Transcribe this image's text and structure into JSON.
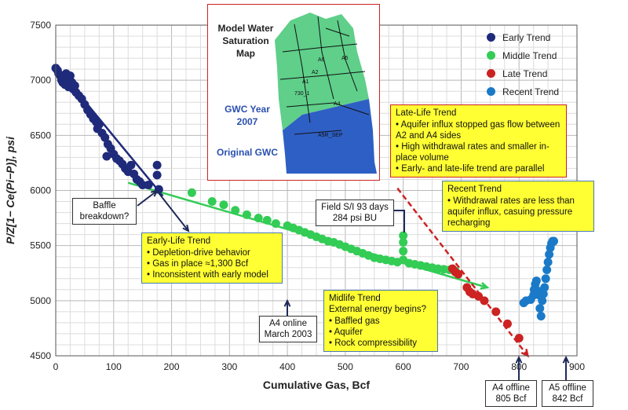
{
  "chart_data": {
    "type": "scatter",
    "xlabel": "Cumulative Gas, Bcf",
    "ylabel": "P/Z[1− Ce(Pi−P)], psi",
    "xlim": [
      0,
      900
    ],
    "ylim": [
      4500,
      7500
    ],
    "x_ticks": [
      "0",
      "100",
      "200",
      "300",
      "400",
      "500",
      "600",
      "700",
      "800",
      "900"
    ],
    "y_ticks": [
      "4500",
      "5000",
      "5500",
      "6000",
      "6500",
      "7000",
      "7500"
    ],
    "grid": true,
    "legend_position": "top-right",
    "series": [
      {
        "name": "Early Trend",
        "color": "#1f2a7a",
        "points": [
          [
            0,
            7110
          ],
          [
            3,
            7090
          ],
          [
            5,
            7060
          ],
          [
            8,
            7040
          ],
          [
            10,
            7000
          ],
          [
            12,
            6980
          ],
          [
            14,
            7020
          ],
          [
            16,
            6960
          ],
          [
            18,
            7060
          ],
          [
            20,
            6990
          ],
          [
            22,
            6940
          ],
          [
            25,
            7040
          ],
          [
            28,
            6980
          ],
          [
            30,
            6920
          ],
          [
            33,
            6950
          ],
          [
            35,
            6890
          ],
          [
            40,
            6860
          ],
          [
            45,
            6830
          ],
          [
            50,
            6780
          ],
          [
            55,
            6730
          ],
          [
            60,
            6690
          ],
          [
            65,
            6650
          ],
          [
            70,
            6620
          ],
          [
            72,
            6560
          ],
          [
            75,
            6600
          ],
          [
            80,
            6520
          ],
          [
            85,
            6480
          ],
          [
            90,
            6420
          ],
          [
            95,
            6380
          ],
          [
            100,
            6330
          ],
          [
            88,
            6310
          ],
          [
            105,
            6290
          ],
          [
            110,
            6270
          ],
          [
            115,
            6240
          ],
          [
            120,
            6200
          ],
          [
            125,
            6170
          ],
          [
            130,
            6230
          ],
          [
            135,
            6150
          ],
          [
            140,
            6100
          ],
          [
            145,
            6080
          ],
          [
            150,
            6050
          ],
          [
            160,
            6050
          ],
          [
            175,
            6230
          ],
          [
            175,
            6140
          ],
          [
            178,
            6010
          ]
        ]
      },
      {
        "name": "Middle Trend",
        "color": "#33cc55",
        "points": [
          [
            235,
            5980
          ],
          [
            270,
            5900
          ],
          [
            290,
            5870
          ],
          [
            310,
            5820
          ],
          [
            330,
            5780
          ],
          [
            350,
            5750
          ],
          [
            365,
            5730
          ],
          [
            380,
            5700
          ],
          [
            400,
            5680
          ],
          [
            410,
            5660
          ],
          [
            420,
            5640
          ],
          [
            430,
            5620
          ],
          [
            440,
            5600
          ],
          [
            450,
            5580
          ],
          [
            460,
            5560
          ],
          [
            470,
            5540
          ],
          [
            480,
            5530
          ],
          [
            490,
            5510
          ],
          [
            500,
            5490
          ],
          [
            510,
            5470
          ],
          [
            520,
            5450
          ],
          [
            530,
            5430
          ],
          [
            540,
            5410
          ],
          [
            550,
            5390
          ],
          [
            560,
            5380
          ],
          [
            570,
            5370
          ],
          [
            580,
            5360
          ],
          [
            590,
            5350
          ],
          [
            600,
            5370
          ],
          [
            600,
            5450
          ],
          [
            600,
            5530
          ],
          [
            600,
            5590
          ],
          [
            610,
            5340
          ],
          [
            620,
            5330
          ],
          [
            630,
            5320
          ],
          [
            640,
            5310
          ],
          [
            650,
            5300
          ],
          [
            660,
            5290
          ],
          [
            670,
            5285
          ],
          [
            680,
            5280
          ],
          [
            690,
            5270
          ]
        ]
      },
      {
        "name": "Late Trend",
        "color": "#cc2222",
        "points": [
          [
            685,
            5290
          ],
          [
            690,
            5260
          ],
          [
            695,
            5240
          ],
          [
            710,
            5120
          ],
          [
            715,
            5080
          ],
          [
            720,
            5060
          ],
          [
            730,
            5040
          ],
          [
            740,
            5000
          ],
          [
            760,
            4900
          ],
          [
            780,
            4790
          ],
          [
            800,
            4660
          ]
        ]
      },
      {
        "name": "Recent Trend",
        "color": "#1a7ac8",
        "points": [
          [
            808,
            4980
          ],
          [
            812,
            5000
          ],
          [
            820,
            5010
          ],
          [
            825,
            5050
          ],
          [
            826,
            5100
          ],
          [
            828,
            5150
          ],
          [
            830,
            5180
          ],
          [
            832,
            5090
          ],
          [
            835,
            5050
          ],
          [
            836,
            4930
          ],
          [
            838,
            4860
          ],
          [
            840,
            5000
          ],
          [
            842,
            5060
          ],
          [
            844,
            5120
          ],
          [
            846,
            5200
          ],
          [
            848,
            5280
          ],
          [
            850,
            5350
          ],
          [
            852,
            5420
          ],
          [
            854,
            5480
          ],
          [
            856,
            5520
          ],
          [
            858,
            5540
          ],
          [
            860,
            5540
          ]
        ]
      }
    ],
    "trend_lines": [
      {
        "label": "early",
        "color": "#1f2a7a",
        "from": [
          0,
          7130
        ],
        "to": [
          185,
          5950
        ]
      },
      {
        "label": "middle",
        "color": "#33cc55",
        "from": [
          125,
          6070
        ],
        "to": [
          745,
          5120
        ]
      },
      {
        "label": "late",
        "color": "#cc2222",
        "from": [
          590,
          6020
        ],
        "to": [
          815,
          4500
        ]
      }
    ]
  },
  "legend": {
    "items": [
      {
        "label": "Early Trend",
        "color": "#1f2a7a"
      },
      {
        "label": "Middle Trend",
        "color": "#33cc55"
      },
      {
        "label": "Late Trend",
        "color": "#cc2222"
      },
      {
        "label": "Recent Trend",
        "color": "#1a7ac8"
      }
    ]
  },
  "inset_map": {
    "title": "Model Water Saturation Map",
    "gwc_year_label": "GWC Year 2007",
    "original_gwc_label": "Original GWC",
    "well_labels": [
      "A6",
      "A5",
      "A2",
      "730_1",
      "A4",
      "A5R_SEP",
      "A1"
    ]
  },
  "annotations": {
    "baffle": "Baffle breakdown?",
    "early_life": {
      "title": "Early-Life Trend",
      "bullets": [
        "Depletion-drive behavior",
        "Gas in place ≈1,300 Bcf",
        "Inconsistent with early model"
      ]
    },
    "late_life": {
      "title": "Late-Life Trend",
      "bullets": [
        "Aquifer influx stopped gas flow between A2 and A4 sides",
        "High withdrawal rates and smaller in-place volume",
        "Early- and late-life trend are parallel"
      ]
    },
    "recent": {
      "title": "Recent Trend",
      "bullets": [
        "Withdrawal rates are less than aquifer influx, casuing pressure recharging"
      ]
    },
    "midlife": {
      "title": "Midlife Trend",
      "subtitle": "External energy begins?",
      "bullets": [
        "Baffled gas",
        "Aquifer",
        "Rock compressibility"
      ]
    },
    "field_si_line1": "Field S/I 93 days",
    "field_si_line2": "284 psi BU",
    "a4_online_line1": "A4 online",
    "a4_online_line2": "March 2003",
    "a4_offline_line1": "A4 offline",
    "a4_offline_line2": "805 Bcf",
    "a5_offline_line1": "A5 offline",
    "a5_offline_line2": "842 Bcf"
  },
  "colors": {
    "callout_fill": "#ffff33",
    "callout_border": "#4a7ab8",
    "arrow": "#1f2a5a",
    "map_green": "#5fcf8a",
    "map_blue": "#2e5fc4"
  }
}
